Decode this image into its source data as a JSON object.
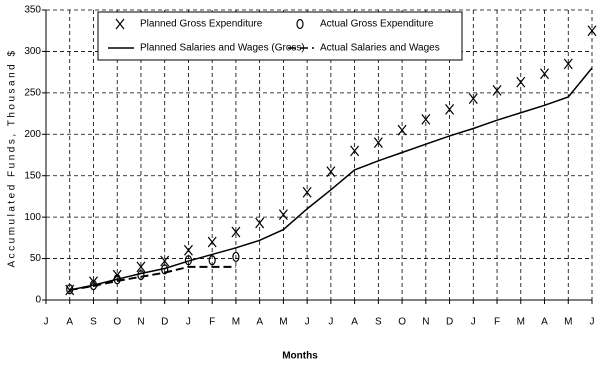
{
  "chart_data": {
    "type": "line",
    "x_label": "Months",
    "y_label": "Accumulated Funds, Thousand $",
    "categories": [
      "J",
      "A",
      "S",
      "O",
      "N",
      "D",
      "J",
      "F",
      "M",
      "A",
      "M",
      "J",
      "J",
      "A",
      "S",
      "O",
      "N",
      "D",
      "J",
      "F",
      "M",
      "A",
      "M",
      "J"
    ],
    "ylim": [
      0,
      350
    ],
    "yticks": [
      0,
      50,
      100,
      150,
      200,
      250,
      300,
      350
    ],
    "grid": true,
    "series": [
      {
        "name": "Planned Gross Expenditure",
        "marker": "x",
        "color": "#000000",
        "values": [
          null,
          12,
          22,
          30,
          40,
          47,
          60,
          70,
          82,
          93,
          103,
          130,
          155,
          180,
          190,
          205,
          218,
          230,
          243,
          253,
          263,
          273,
          285,
          325
        ]
      },
      {
        "name": "Actual Gross Expenditure",
        "marker": "o",
        "color": "#000000",
        "values": [
          null,
          13,
          18,
          25,
          30,
          37,
          48,
          48,
          52,
          null,
          null,
          null,
          null,
          null,
          null,
          null,
          null,
          null,
          null,
          null,
          null,
          null,
          null,
          null
        ]
      },
      {
        "name": "Planned Salaries and Wages (Gross)",
        "marker": "solid",
        "color": "#000000",
        "values": [
          null,
          12,
          18,
          25,
          32,
          38,
          47,
          55,
          63,
          72,
          85,
          110,
          133,
          157,
          168,
          178,
          188,
          198,
          207,
          217,
          226,
          235,
          245,
          280
        ]
      },
      {
        "name": "Actual Salaries and Wages",
        "marker": "dashed",
        "color": "#000000",
        "values": [
          null,
          12,
          17,
          23,
          28,
          33,
          40,
          40,
          40,
          null,
          null,
          null,
          null,
          null,
          null,
          null,
          null,
          null,
          null,
          null,
          null,
          null,
          null,
          null
        ]
      }
    ]
  }
}
